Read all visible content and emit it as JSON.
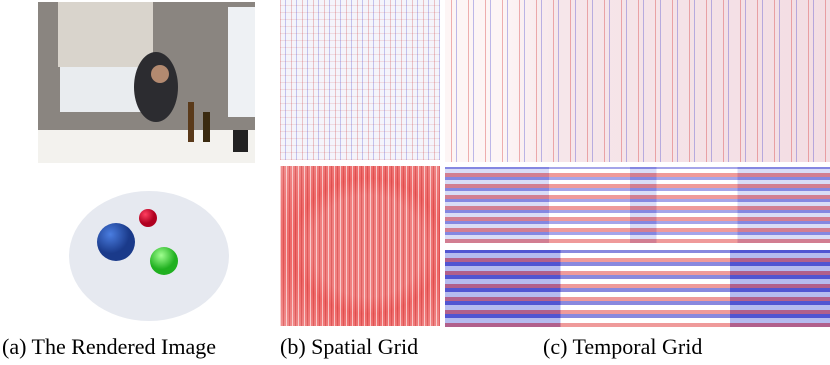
{
  "captions": [
    "(a) The Rendered Image",
    "(b) Spatial Grid",
    "(c) Temporal Grid"
  ]
}
